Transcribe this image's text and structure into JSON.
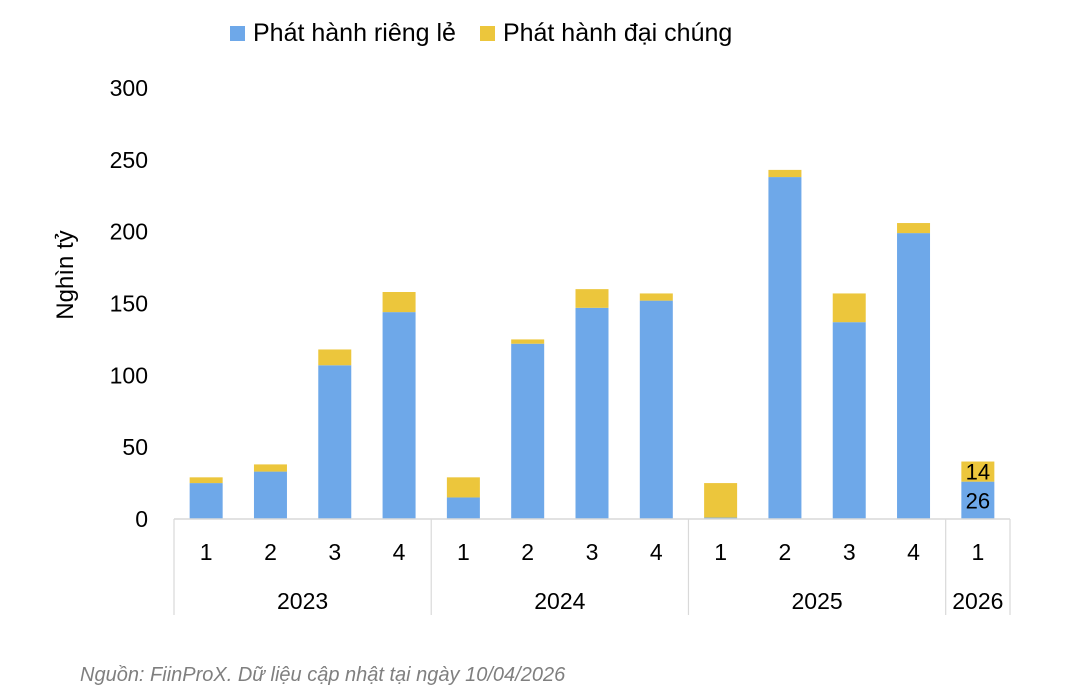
{
  "legend": {
    "series_1": "Phát hành riêng lẻ",
    "series_2": "Phát hành đại chúng"
  },
  "source_note": "Nguồn: FiinProX. Dữ liệu cập nhật tại ngày 10/04/2026",
  "colors": {
    "series_1": "#6ea8e9",
    "series_2": "#ecc63c",
    "axis": "#d9d9d9"
  },
  "chart_data": {
    "type": "bar",
    "stacked": true,
    "ylabel": "Nghìn tỷ",
    "ylim": [
      0,
      300
    ],
    "yticks": [
      0,
      50,
      100,
      150,
      200,
      250,
      300
    ],
    "grid": false,
    "legend_position": "top",
    "categories": [
      "1",
      "2",
      "3",
      "4",
      "1",
      "2",
      "3",
      "4",
      "1",
      "2",
      "3",
      "4",
      "1"
    ],
    "groups": [
      {
        "label": "2023",
        "size": 4
      },
      {
        "label": "2024",
        "size": 4
      },
      {
        "label": "2025",
        "size": 4
      },
      {
        "label": "2026",
        "size": 1
      }
    ],
    "series": [
      {
        "name": "Phát hành riêng lẻ",
        "color": "#6ea8e9",
        "values": [
          25,
          33,
          107,
          144,
          15,
          122,
          147,
          152,
          1,
          238,
          137,
          199,
          26
        ]
      },
      {
        "name": "Phát hành đại chúng",
        "color": "#ecc63c",
        "values": [
          4,
          5,
          11,
          14,
          14,
          3,
          13,
          5,
          24,
          5,
          20,
          7,
          14
        ]
      }
    ],
    "data_labels": [
      {
        "category_index": 12,
        "series_index": 0,
        "text": "26"
      },
      {
        "category_index": 12,
        "series_index": 1,
        "text": "14"
      }
    ]
  }
}
